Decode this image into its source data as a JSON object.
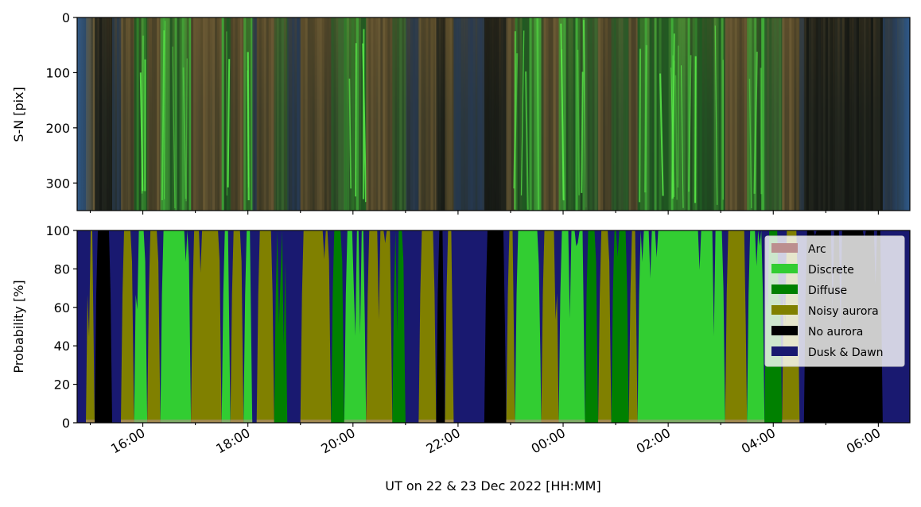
{
  "chart_data": [
    {
      "type": "heatmap",
      "description_kind": "keogram image",
      "ylabel": "S-N [pix]",
      "ylim": [
        350,
        0
      ],
      "yticks": [
        0,
        100,
        200,
        300
      ],
      "xlim_hours": [
        14.75,
        30.6
      ],
      "sharex": true
    },
    {
      "type": "area",
      "stacked": true,
      "ylabel": "Probability [%]",
      "xlabel": "UT on 22 & 23 Dec 2022 [HH:MM]",
      "ylim": [
        0,
        100
      ],
      "yticks": [
        0,
        20,
        40,
        60,
        80,
        100
      ],
      "xlim_hours": [
        14.75,
        30.6
      ],
      "xticks": [
        {
          "hour": 16,
          "label": "16:00"
        },
        {
          "hour": 18,
          "label": "18:00"
        },
        {
          "hour": 20,
          "label": "20:00"
        },
        {
          "hour": 22,
          "label": "22:00"
        },
        {
          "hour": 24,
          "label": "00:00"
        },
        {
          "hour": 26,
          "label": "02:00"
        },
        {
          "hour": 28,
          "label": "04:00"
        },
        {
          "hour": 30,
          "label": "06:00"
        }
      ],
      "legend_position": "top-right",
      "series": [
        {
          "name": "Arc",
          "color": "#bc8f8f"
        },
        {
          "name": "Discrete",
          "color": "#32cd32"
        },
        {
          "name": "Diffuse",
          "color": "#008000"
        },
        {
          "name": "Noisy aurora",
          "color": "#808000"
        },
        {
          "name": "No aurora",
          "color": "#000000"
        },
        {
          "name": "Dusk & Dawn",
          "color": "#191970"
        }
      ],
      "dominant_segments": [
        {
          "start": "14:45",
          "end": "14:55",
          "class": "Dusk & Dawn"
        },
        {
          "start": "14:55",
          "end": "15:05",
          "class": "Noisy aurora"
        },
        {
          "start": "15:05",
          "end": "15:25",
          "class": "No aurora"
        },
        {
          "start": "15:25",
          "end": "15:35",
          "class": "Dusk & Dawn"
        },
        {
          "start": "15:35",
          "end": "15:50",
          "class": "Noisy aurora"
        },
        {
          "start": "15:50",
          "end": "16:05",
          "class": "Discrete"
        },
        {
          "start": "16:05",
          "end": "16:20",
          "class": "Noisy aurora"
        },
        {
          "start": "16:20",
          "end": "16:55",
          "class": "Discrete"
        },
        {
          "start": "16:55",
          "end": "17:30",
          "class": "Noisy aurora"
        },
        {
          "start": "17:30",
          "end": "17:40",
          "class": "Discrete"
        },
        {
          "start": "17:40",
          "end": "17:55",
          "class": "Noisy aurora"
        },
        {
          "start": "17:55",
          "end": "18:05",
          "class": "Discrete"
        },
        {
          "start": "18:05",
          "end": "18:10",
          "class": "Dusk & Dawn"
        },
        {
          "start": "18:10",
          "end": "18:30",
          "class": "Noisy aurora"
        },
        {
          "start": "18:30",
          "end": "18:45",
          "class": "Diffuse"
        },
        {
          "start": "18:45",
          "end": "19:00",
          "class": "Dusk & Dawn"
        },
        {
          "start": "19:00",
          "end": "19:35",
          "class": "Noisy aurora"
        },
        {
          "start": "19:35",
          "end": "19:50",
          "class": "Diffuse"
        },
        {
          "start": "19:50",
          "end": "20:15",
          "class": "Discrete"
        },
        {
          "start": "20:15",
          "end": "20:45",
          "class": "Noisy aurora"
        },
        {
          "start": "20:45",
          "end": "21:00",
          "class": "Diffuse"
        },
        {
          "start": "21:00",
          "end": "21:15",
          "class": "Dusk & Dawn"
        },
        {
          "start": "21:15",
          "end": "21:35",
          "class": "Noisy aurora"
        },
        {
          "start": "21:35",
          "end": "21:45",
          "class": "No aurora"
        },
        {
          "start": "21:45",
          "end": "21:55",
          "class": "Noisy aurora"
        },
        {
          "start": "21:55",
          "end": "22:30",
          "class": "Dusk & Dawn"
        },
        {
          "start": "22:30",
          "end": "22:55",
          "class": "No aurora"
        },
        {
          "start": "22:55",
          "end": "23:05",
          "class": "Noisy aurora"
        },
        {
          "start": "23:05",
          "end": "23:35",
          "class": "Discrete"
        },
        {
          "start": "23:35",
          "end": "23:55",
          "class": "Noisy aurora"
        },
        {
          "start": "23:55",
          "end": "00:25",
          "class": "Discrete"
        },
        {
          "start": "00:25",
          "end": "00:40",
          "class": "Diffuse"
        },
        {
          "start": "00:40",
          "end": "00:55",
          "class": "Noisy aurora"
        },
        {
          "start": "00:55",
          "end": "01:15",
          "class": "Diffuse"
        },
        {
          "start": "01:15",
          "end": "01:25",
          "class": "Noisy aurora"
        },
        {
          "start": "01:25",
          "end": "03:05",
          "class": "Discrete"
        },
        {
          "start": "03:05",
          "end": "03:30",
          "class": "Noisy aurora"
        },
        {
          "start": "03:30",
          "end": "03:50",
          "class": "Discrete"
        },
        {
          "start": "03:50",
          "end": "04:10",
          "class": "Diffuse"
        },
        {
          "start": "04:10",
          "end": "04:30",
          "class": "Noisy aurora"
        },
        {
          "start": "04:30",
          "end": "04:35",
          "class": "Dusk & Dawn"
        },
        {
          "start": "04:35",
          "end": "06:05",
          "class": "No aurora"
        },
        {
          "start": "06:05",
          "end": "06:36",
          "class": "Dusk & Dawn"
        }
      ]
    }
  ]
}
